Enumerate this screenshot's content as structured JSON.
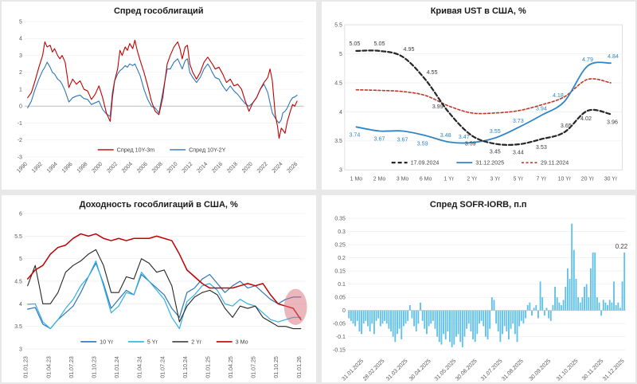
{
  "page": {
    "background": "#e8e8e8"
  },
  "chart_data": [
    {
      "id": "gov_spread",
      "title": "Спред гособлигаций",
      "type": "line",
      "xlim": [
        1989.6,
        2026.8
      ],
      "ylim": [
        -3,
        5
      ],
      "grid": true,
      "zero_axis": true,
      "yticks": {
        "values": [
          -3,
          -2,
          -1,
          0,
          1,
          2,
          3,
          4,
          5
        ],
        "labels": [
          "-3",
          "-2",
          "-1",
          "0",
          "1",
          "2",
          "3",
          "4",
          "5"
        ]
      },
      "xticks": {
        "values": [
          1990,
          1992,
          1994,
          1996,
          1998,
          2000,
          2002,
          2004,
          2006,
          2008,
          2010,
          2012,
          2014,
          2016,
          2018,
          2020,
          2022,
          2024,
          2026
        ],
        "labels": [
          "1990",
          "1992",
          "1994",
          "1996",
          "1998",
          "2000",
          "2002",
          "2004",
          "2006",
          "2008",
          "2010",
          "2012",
          "2014",
          "2016",
          "2018",
          "2020",
          "2022",
          "2024",
          "2026"
        ]
      },
      "x": [
        1990.0,
        1990.5,
        1991.0,
        1991.5,
        1992.0,
        1992.3,
        1992.6,
        1993.0,
        1993.3,
        1993.6,
        1994.0,
        1994.3,
        1994.6,
        1995.0,
        1995.5,
        1996.0,
        1996.5,
        1997.0,
        1997.5,
        1998.0,
        1998.5,
        1999.0,
        1999.5,
        2000.0,
        2000.5,
        2001.0,
        2001.3,
        2001.6,
        2002.0,
        2002.3,
        2002.6,
        2003.0,
        2003.3,
        2003.6,
        2004.0,
        2004.3,
        2004.6,
        2005.0,
        2005.5,
        2006.0,
        2006.5,
        2007.0,
        2007.5,
        2008.0,
        2008.3,
        2008.6,
        2009.0,
        2009.5,
        2010.0,
        2010.3,
        2010.6,
        2011.0,
        2011.3,
        2011.6,
        2012.0,
        2012.5,
        2013.0,
        2013.5,
        2014.0,
        2014.3,
        2014.6,
        2015.0,
        2015.5,
        2016.0,
        2016.5,
        2017.0,
        2017.5,
        2018.0,
        2018.5,
        2019.0,
        2019.5,
        2020.0,
        2020.5,
        2021.0,
        2021.5,
        2022.0,
        2022.3,
        2022.6,
        2023.0,
        2023.3,
        2023.5,
        2023.8,
        2024.0,
        2024.3,
        2024.6,
        2025.0,
        2025.3,
        2025.6,
        2025.9
      ],
      "series": [
        {
          "name": "Спред 10Y-3m",
          "color": "#C00000",
          "width": 1.1,
          "y": [
            0.5,
            0.8,
            1.5,
            2.3,
            3.0,
            3.8,
            3.5,
            3.6,
            3.2,
            3.4,
            3.0,
            2.8,
            3.0,
            2.6,
            1.1,
            1.6,
            1.3,
            1.5,
            1.0,
            0.9,
            0.4,
            0.7,
            1.2,
            0.5,
            -0.4,
            -0.9,
            0.5,
            1.5,
            2.2,
            3.3,
            3.0,
            3.5,
            3.3,
            3.7,
            3.4,
            3.9,
            3.3,
            2.7,
            2.0,
            1.2,
            0.3,
            -0.3,
            -0.5,
            0.5,
            1.5,
            2.5,
            3.0,
            3.5,
            3.8,
            3.4,
            2.8,
            3.5,
            3.6,
            2.5,
            2.0,
            1.6,
            2.0,
            2.6,
            2.9,
            2.7,
            2.5,
            2.2,
            2.3,
            1.9,
            1.4,
            1.6,
            1.2,
            1.3,
            1.0,
            0.3,
            -0.3,
            0.2,
            0.5,
            1.0,
            1.4,
            1.7,
            2.2,
            1.5,
            -0.5,
            -1.2,
            -1.9,
            -1.3,
            -1.4,
            -1.6,
            -0.9,
            -0.3,
            0.1,
            0.0,
            0.3
          ]
        },
        {
          "name": "Спред 10Y-2Y",
          "color": "#2E75B6",
          "width": 1.1,
          "y": [
            -0.1,
            0.3,
            1.0,
            1.6,
            2.1,
            2.3,
            2.6,
            2.3,
            2.0,
            1.9,
            1.6,
            1.5,
            1.3,
            0.9,
            0.25,
            0.5,
            0.6,
            0.65,
            0.45,
            0.4,
            0.1,
            0.2,
            0.3,
            -0.2,
            -0.45,
            -0.6,
            0.8,
            1.5,
            1.9,
            2.1,
            2.2,
            2.4,
            2.3,
            2.5,
            2.4,
            2.5,
            2.2,
            1.8,
            1.0,
            0.4,
            0.0,
            -0.1,
            -0.4,
            0.8,
            1.5,
            2.2,
            2.2,
            2.6,
            2.8,
            2.5,
            2.2,
            2.7,
            2.8,
            2.0,
            1.7,
            1.4,
            1.7,
            2.2,
            2.5,
            2.3,
            2.0,
            1.7,
            1.6,
            1.2,
            0.9,
            1.2,
            0.9,
            0.7,
            0.4,
            0.15,
            0.0,
            0.2,
            0.5,
            1.0,
            1.3,
            0.8,
            0.2,
            -0.4,
            -0.7,
            -0.9,
            -1.0,
            -0.8,
            -0.4,
            -0.3,
            -0.1,
            0.3,
            0.5,
            0.55,
            0.65
          ]
        }
      ],
      "legend": [
        {
          "label": "Спред 10Y-3m",
          "color": "#C00000",
          "lw": 1.4
        },
        {
          "label": "Спред 10Y-2Y",
          "color": "#2E75B6",
          "lw": 1.4
        }
      ]
    },
    {
      "id": "ust_curve",
      "title": "Кривая UST в США, %",
      "type": "line",
      "categories": [
        "1 Mo",
        "2 Mo",
        "3 Mo",
        "6 Mo",
        "1 Yr",
        "2 Yr",
        "3 Yr",
        "5 Yr",
        "7 Yr",
        "10 Yr",
        "20 Yr",
        "30 Yr"
      ],
      "xlim": [
        0,
        12
      ],
      "ylim": [
        3,
        5.5
      ],
      "grid": true,
      "yticks": {
        "values": [
          3,
          3.5,
          4,
          4.5,
          5,
          5.5
        ],
        "labels": [
          "3",
          "3.5",
          "4",
          "4.5",
          "5",
          "5.5"
        ]
      },
      "series": [
        {
          "name": "17.09.2024",
          "color": "#262626",
          "width": 2.2,
          "dash": "5,3",
          "y": [
            5.05,
            5.05,
            4.95,
            4.55,
            3.99,
            3.59,
            3.45,
            3.44,
            3.53,
            3.65,
            4.02,
            3.96
          ],
          "labels": {
            "color": "#404040",
            "dx": [
              -2,
              0,
              8,
              8,
              -14,
              -2,
              0,
              0,
              0,
              2,
              -2,
              2
            ],
            "dy": [
              -7,
              -7,
              -7,
              -7,
              -5,
              12,
              12,
              12,
              12,
              -6,
              12,
              12
            ]
          }
        },
        {
          "name": "31.12.2025",
          "color": "#2E86C8",
          "width": 1.8,
          "y": [
            3.74,
            3.67,
            3.67,
            3.59,
            3.48,
            3.47,
            3.55,
            3.73,
            3.94,
            4.18,
            4.79,
            4.84
          ],
          "labels": {
            "color": "#2E86C8",
            "dx": [
              -2,
              0,
              0,
              -4,
              -4,
              -10,
              0,
              0,
              0,
              -8,
              0,
              3
            ],
            "dy": [
              12,
              12,
              13,
              12,
              -6,
              -5,
              -6,
              -6,
              -6,
              -5,
              -6,
              -6
            ]
          }
        },
        {
          "name": "29.11.2024",
          "color": "#C0392B",
          "width": 1.6,
          "dash": "3,2.5",
          "y": [
            4.38,
            4.37,
            4.35,
            4.28,
            4.1,
            3.98,
            3.98,
            4.02,
            4.12,
            4.26,
            4.56,
            4.5
          ]
        }
      ],
      "legend": [
        {
          "label": "17.09.2024",
          "color": "#262626",
          "lw": 2.2,
          "dash": "5,3"
        },
        {
          "label": "31.12.2025",
          "color": "#2E86C8",
          "lw": 1.8
        },
        {
          "label": "29.11.2024",
          "color": "#C0392B",
          "lw": 1.6,
          "dash": "3,2.5"
        }
      ]
    },
    {
      "id": "yields",
      "title": "Доходность гособлигаций в США, %",
      "type": "line",
      "xlim": [
        -0.4,
        36.6
      ],
      "ylim": [
        3,
        6
      ],
      "grid": true,
      "yticks": {
        "values": [
          3,
          3.5,
          4,
          4.5,
          5,
          5.5,
          6
        ],
        "labels": [
          "3",
          "3.5",
          "4",
          "4.5",
          "5",
          "5.5",
          "6"
        ]
      },
      "xticks": {
        "values": [
          0,
          3,
          6,
          9,
          12,
          15,
          18,
          21,
          24,
          27,
          30,
          33,
          36
        ],
        "labels": [
          "01.01.23",
          "01.04.23",
          "01.07.23",
          "01.10.23",
          "01.01.24",
          "01.04.24",
          "01.07.24",
          "01.10.24",
          "01.01.25",
          "01.04.25",
          "01.07.25",
          "01.10.25",
          "01.01.26"
        ]
      },
      "series": [
        {
          "name": "10 Yr",
          "color": "#2E75B6",
          "width": 1.2,
          "y": [
            3.88,
            3.92,
            3.55,
            3.45,
            3.65,
            3.8,
            3.95,
            4.25,
            4.6,
            4.9,
            4.45,
            3.9,
            4.1,
            4.3,
            4.2,
            4.65,
            4.5,
            4.35,
            4.2,
            3.9,
            3.7,
            4.25,
            4.35,
            4.55,
            4.65,
            4.45,
            4.25,
            4.4,
            4.5,
            4.35,
            4.4,
            4.25,
            4.1,
            4.0,
            4.1,
            4.15,
            4.15
          ]
        },
        {
          "name": "5 Yr",
          "color": "#31B0E9",
          "width": 1.2,
          "y": [
            3.99,
            4.0,
            3.6,
            3.45,
            3.65,
            3.9,
            4.1,
            4.4,
            4.6,
            4.95,
            4.4,
            3.8,
            3.95,
            4.25,
            4.2,
            4.7,
            4.5,
            4.3,
            4.1,
            3.7,
            3.45,
            4.05,
            4.2,
            4.4,
            4.45,
            4.3,
            4.0,
            3.95,
            4.1,
            4.0,
            3.95,
            3.8,
            3.65,
            3.6,
            3.65,
            3.7,
            3.7
          ]
        },
        {
          "name": "2 Yr",
          "color": "#262626",
          "width": 1.1,
          "y": [
            4.4,
            4.85,
            4.0,
            4.0,
            4.25,
            4.7,
            4.85,
            4.95,
            5.1,
            5.2,
            4.85,
            4.25,
            4.25,
            4.6,
            4.55,
            5.0,
            4.9,
            4.7,
            4.75,
            4.4,
            3.6,
            3.95,
            4.15,
            4.25,
            4.3,
            4.2,
            3.9,
            3.7,
            3.95,
            3.9,
            3.95,
            3.7,
            3.6,
            3.5,
            3.5,
            3.45,
            3.45
          ]
        },
        {
          "name": "3 Mo",
          "color": "#C00000",
          "width": 1.5,
          "y": [
            4.55,
            4.75,
            4.85,
            5.1,
            5.25,
            5.3,
            5.45,
            5.55,
            5.5,
            5.55,
            5.45,
            5.4,
            5.45,
            5.4,
            5.45,
            5.45,
            5.45,
            5.5,
            5.45,
            5.4,
            5.1,
            4.75,
            4.6,
            4.45,
            4.35,
            4.35,
            4.35,
            4.35,
            4.4,
            4.45,
            4.4,
            4.45,
            4.2,
            4.0,
            3.95,
            3.9,
            3.65
          ]
        }
      ],
      "highlight": {
        "cx": 35.3,
        "cy": 3.93,
        "rx": 1.5,
        "ry": 0.4,
        "color": "#D9707A",
        "opacity": 0.5
      },
      "legend": [
        {
          "label": "10 Yr",
          "color": "#2E75B6",
          "lw": 1.6
        },
        {
          "label": "5 Yr",
          "color": "#31B0E9",
          "lw": 1.6
        },
        {
          "label": "2 Yr",
          "color": "#404040",
          "lw": 1.6
        },
        {
          "label": "3 Mo",
          "color": "#C00000",
          "lw": 1.6
        }
      ]
    },
    {
      "id": "sofr_iorb",
      "title": "Спред SOFR-IORB, п.п",
      "type": "bar",
      "bar_color": "#5FC0E9",
      "xlim": [
        0,
        132
      ],
      "ylim": [
        -0.165,
        0.35
      ],
      "grid": true,
      "yticks": {
        "values": [
          0.35,
          0.3,
          0.25,
          0.2,
          0.15,
          0.1,
          0.05,
          0,
          -0.05,
          -0.1,
          -0.15
        ],
        "labels": [
          "0.35",
          "0.3",
          "0.25",
          "0.2",
          "0.15",
          "0.1",
          "0.05",
          "0",
          "-0.05",
          "-0.1",
          "-0.15"
        ]
      },
      "values": [
        -0.03,
        -0.04,
        -0.05,
        -0.06,
        -0.04,
        -0.08,
        -0.09,
        -0.05,
        -0.04,
        -0.06,
        -0.08,
        -0.05,
        -0.09,
        -0.04,
        -0.03,
        -0.06,
        -0.05,
        -0.04,
        -0.05,
        -0.07,
        -0.08,
        -0.1,
        -0.12,
        -0.09,
        -0.07,
        -0.11,
        -0.06,
        -0.05,
        -0.04,
        0.02,
        -0.03,
        -0.06,
        -0.08,
        -0.05,
        0.03,
        -0.04,
        -0.07,
        -0.09,
        -0.06,
        -0.05,
        -0.04,
        -0.07,
        -0.1,
        -0.12,
        -0.13,
        -0.09,
        -0.11,
        -0.08,
        -0.12,
        -0.14,
        -0.13,
        -0.1,
        -0.09,
        -0.12,
        -0.14,
        -0.1,
        -0.07,
        -0.05,
        -0.08,
        -0.11,
        -0.12,
        -0.09,
        -0.05,
        -0.04,
        -0.06,
        -0.1,
        -0.11,
        -0.07,
        0.05,
        0.04,
        -0.05,
        -0.08,
        -0.12,
        -0.09,
        -0.06,
        -0.08,
        -0.11,
        -0.07,
        -0.05,
        -0.09,
        -0.12,
        -0.06,
        -0.04,
        -0.05,
        -0.03,
        0.02,
        0.03,
        -0.02,
        0.01,
        0.02,
        -0.03,
        0.11,
        0.05,
        -0.02,
        0.01,
        -0.03,
        -0.04,
        0.02,
        0.09,
        0.05,
        0.03,
        0.02,
        0.04,
        0.09,
        0.16,
        0.12,
        0.33,
        0.23,
        0.12,
        0.05,
        0.03,
        0.05,
        0.09,
        0.1,
        0.05,
        0.16,
        0.22,
        0.22,
        0.05,
        0.03,
        -0.02,
        0.04,
        0.03,
        0.02,
        0.04,
        0.03,
        0.11,
        0.02,
        0.03,
        0.01,
        0.11,
        0.22
      ],
      "xticks": {
        "indices": [
          7,
          17,
          28,
          39,
          51,
          61,
          73,
          83,
          96,
          109,
          121,
          131
        ],
        "labels": [
          "31.01.2025",
          "28.02.2025",
          "31.03.2025",
          "30.04.2025",
          "31.05.2025",
          "30.06.2025",
          "31.07.2025",
          "31.08.2025",
          "30.09.2025",
          "31.10.2025",
          "30.11.2025",
          "31.12.2025"
        ]
      },
      "annotation": {
        "text": "0.22",
        "index": 131
      }
    }
  ]
}
